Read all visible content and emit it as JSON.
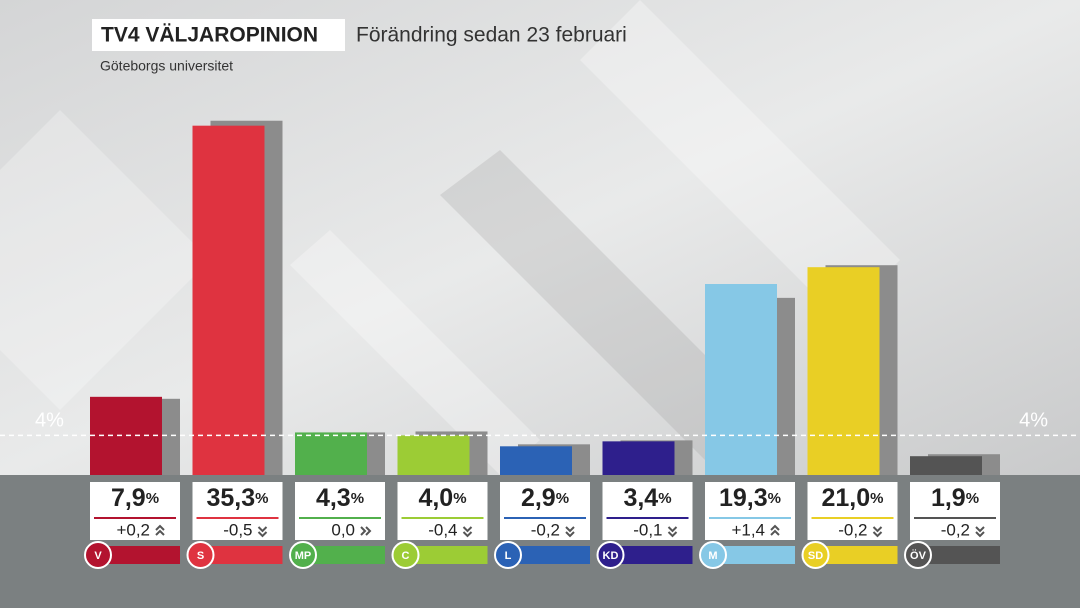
{
  "chart_data": {
    "type": "bar",
    "title": "TV4 VÄLJAROPINION",
    "subtitle": "Förändring sedan 23 februari",
    "source": "Göteborgs universitet",
    "categories": [
      "V",
      "S",
      "MP",
      "C",
      "L",
      "KD",
      "M",
      "SD",
      "ÖV"
    ],
    "colors": [
      "#b3132f",
      "#df3340",
      "#52b04c",
      "#9ccc35",
      "#2b62b5",
      "#2e1f8c",
      "#86c8e6",
      "#e9cf25",
      "#545454"
    ],
    "values": [
      7.9,
      35.3,
      4.3,
      4.0,
      2.9,
      3.4,
      19.3,
      21.0,
      1.9
    ],
    "value_labels": [
      "7,9",
      "35,3",
      "4,3",
      "4,0",
      "2,9",
      "3,4",
      "19,3",
      "21,0",
      "1,9"
    ],
    "unit": "%",
    "previous_values": [
      7.7,
      35.8,
      4.3,
      4.4,
      3.1,
      3.5,
      17.9,
      21.2,
      2.1
    ],
    "previous_color": "#8c8c8c",
    "change": {
      "values": [
        0.2,
        -0.5,
        0.0,
        -0.4,
        -0.2,
        -0.1,
        1.4,
        -0.2,
        -0.2
      ],
      "value_labels": [
        "+0,2",
        "-0,5",
        "0,0",
        "-0,4",
        "-0,2",
        "-0,1",
        "+1,4",
        "-0,2",
        "-0,2"
      ]
    },
    "threshold": {
      "value": 4,
      "label": "4%"
    },
    "ylim": [
      0,
      48
    ]
  }
}
